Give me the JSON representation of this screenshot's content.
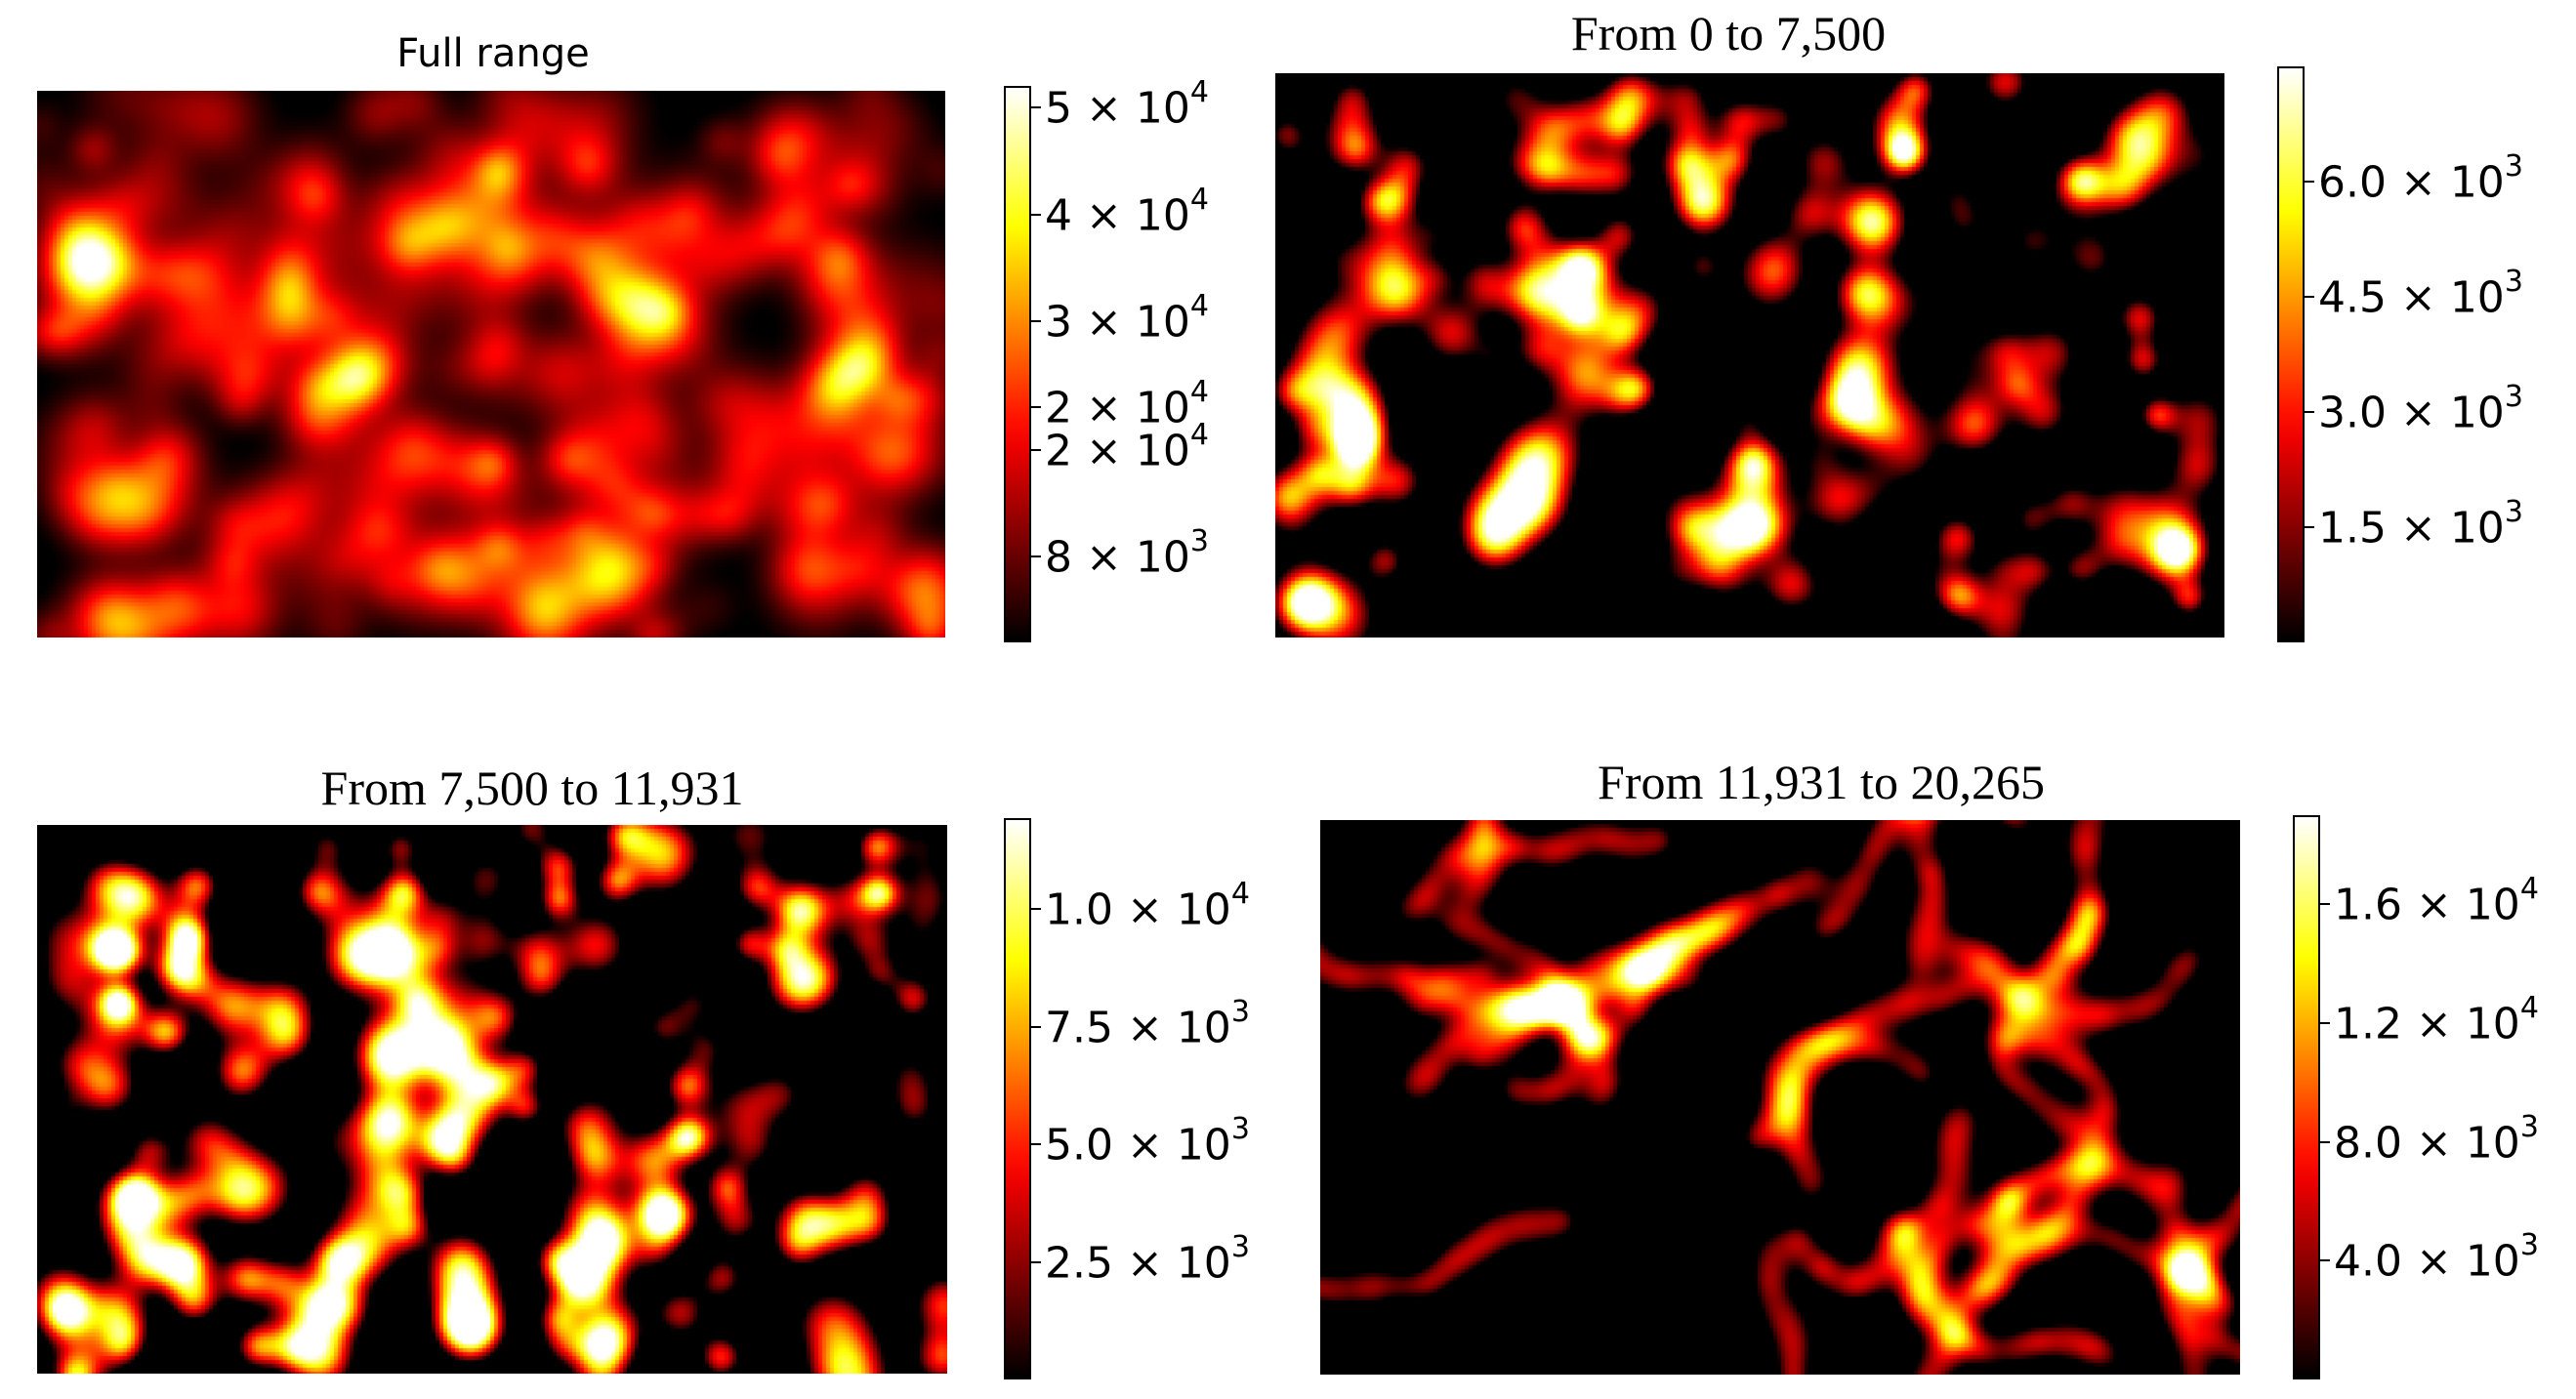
{
  "chart_data": [
    {
      "type": "heatmap",
      "title": "Full range",
      "colormap": "hot",
      "colorbar": {
        "range": [
          0,
          52000
        ],
        "ticks": [
          {
            "value": 8000,
            "base": "8 × 10",
            "exp": "3"
          },
          {
            "value": 18000,
            "base": "2 × 10",
            "exp": "4"
          },
          {
            "value": 22000,
            "base": "2 × 10",
            "exp": "4"
          },
          {
            "value": 30000,
            "base": "3 × 10",
            "exp": "4"
          },
          {
            "value": 40000,
            "base": "4 × 10",
            "exp": "4"
          },
          {
            "value": 50000,
            "base": "5 × 10",
            "exp": "4"
          }
        ]
      },
      "pattern": {
        "style": "dense",
        "seed": 11,
        "threshold": 0.05
      }
    },
    {
      "type": "heatmap",
      "title": "From 0 to 7,500",
      "colormap": "hot",
      "colorbar": {
        "range": [
          0,
          7500
        ],
        "ticks": [
          {
            "value": 1500,
            "base": "1.5 × 10",
            "exp": "3"
          },
          {
            "value": 3000,
            "base": "3.0 × 10",
            "exp": "3"
          },
          {
            "value": 4500,
            "base": "4.5 × 10",
            "exp": "3"
          },
          {
            "value": 6000,
            "base": "6.0 × 10",
            "exp": "3"
          }
        ]
      },
      "pattern": {
        "style": "blobs",
        "seed": 23,
        "threshold": 0.45
      }
    },
    {
      "type": "heatmap",
      "title": "From 7,500 to 11,931",
      "colormap": "hot",
      "colorbar": {
        "range": [
          0,
          11931
        ],
        "ticks": [
          {
            "value": 2500,
            "base": "2.5 × 10",
            "exp": "3"
          },
          {
            "value": 5000,
            "base": "5.0 × 10",
            "exp": "3"
          },
          {
            "value": 7500,
            "base": "7.5 × 10",
            "exp": "3"
          },
          {
            "value": 10000,
            "base": "1.0 × 10",
            "exp": "4"
          }
        ]
      },
      "pattern": {
        "style": "blobs",
        "seed": 47,
        "threshold": 0.5
      }
    },
    {
      "type": "heatmap",
      "title": "From 11,931 to 20,265",
      "colormap": "hot",
      "colorbar": {
        "range": [
          0,
          19000
        ],
        "ticks": [
          {
            "value": 4000,
            "base": "4.0 × 10",
            "exp": "3"
          },
          {
            "value": 8000,
            "base": "8.0 × 10",
            "exp": "3"
          },
          {
            "value": 12000,
            "base": "1.2 × 10",
            "exp": "4"
          },
          {
            "value": 16000,
            "base": "1.6 × 10",
            "exp": "4"
          }
        ]
      },
      "pattern": {
        "style": "worms",
        "seed": 71,
        "threshold": 0.35
      }
    }
  ]
}
